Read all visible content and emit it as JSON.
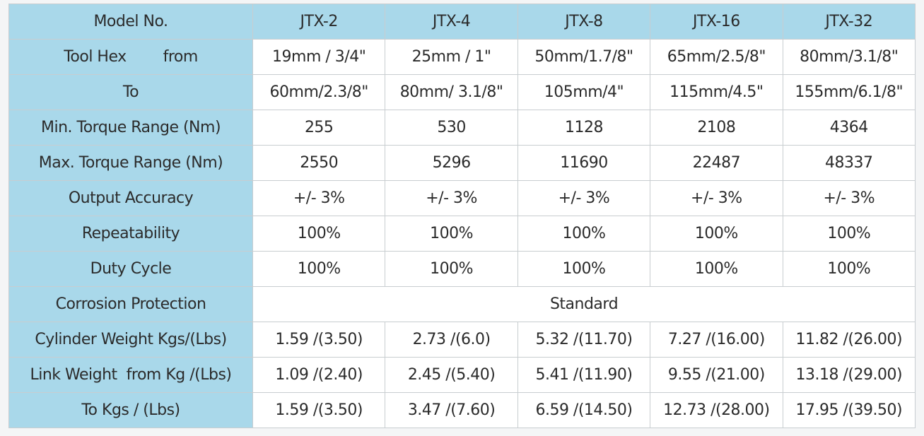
{
  "table": {
    "header": [
      "Model No.",
      "JTX-2",
      "JTX-4",
      "JTX-8",
      "JTX-16",
      "JTX-32"
    ],
    "rows": [
      {
        "label": "Tool Hex        from",
        "cells": [
          "19mm / 3/4\"",
          "25mm / 1\"",
          "50mm/1.7/8\"",
          "65mm/2.5/8\"",
          "80mm/3.1/8\""
        ]
      },
      {
        "label": "To",
        "cells": [
          "60mm/2.3/8\"",
          "80mm/ 3.1/8\"",
          "105mm/4\"",
          "115mm/4.5\"",
          "155mm/6.1/8\""
        ]
      },
      {
        "label": "Min. Torque Range (Nm)",
        "cells": [
          "255",
          "530",
          "1128",
          "2108",
          "4364"
        ]
      },
      {
        "label": "Max. Torque Range (Nm)",
        "cells": [
          "2550",
          "5296",
          "11690",
          "22487",
          "48337"
        ]
      },
      {
        "label": "Output Accuracy",
        "cells": [
          "+/- 3%",
          "+/- 3%",
          "+/- 3%",
          "+/- 3%",
          "+/- 3%"
        ]
      },
      {
        "label": "Repeatability",
        "cells": [
          "100%",
          "100%",
          "100%",
          "100%",
          "100%"
        ]
      },
      {
        "label": "Duty Cycle",
        "cells": [
          "100%",
          "100%",
          "100%",
          "100%",
          "100%"
        ]
      },
      {
        "label": "Corrosion Protection",
        "cells": [
          "Standard"
        ]
      },
      {
        "label": "Cylinder Weight Kgs/(Lbs)",
        "cells": [
          "1.59 /(3.50)",
          "2.73 /(6.0)",
          "5.32 /(11.70)",
          "7.27 /(16.00)",
          "11.82 /(26.00)"
        ]
      },
      {
        "label": "Link Weight  from Kg /(Lbs)",
        "cells": [
          "1.09 /(2.40)",
          "2.45 /(5.40)",
          "5.41 /(11.90)",
          "9.55 /(21.00)",
          "13.18 /(29.00)"
        ]
      },
      {
        "label": "To Kgs / (Lbs)",
        "cells": [
          "1.59 /(3.50)",
          "3.47 /(7.60)",
          "6.59 /(14.50)",
          "12.73 /(28.00)",
          "17.95 /(39.50)"
        ]
      }
    ]
  }
}
